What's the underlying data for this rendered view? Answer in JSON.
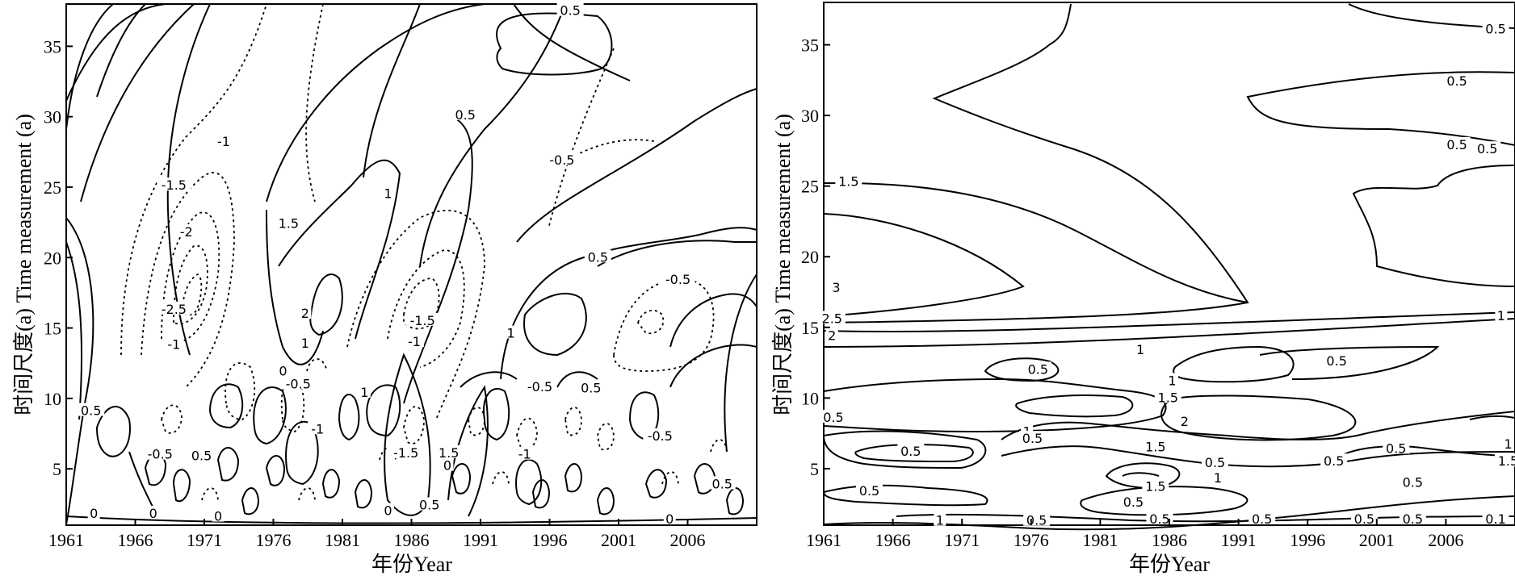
{
  "chart_data": [
    {
      "type": "contour",
      "panel": "left",
      "xlabel": "年份Year",
      "ylabel": "时间尺度(a) Time measurement (a)",
      "xlim": [
        1961,
        2011
      ],
      "ylim": [
        1,
        38
      ],
      "x_ticks": [
        "1961",
        "1966",
        "1971",
        "1976",
        "1981",
        "1986",
        "1991",
        "1996",
        "2001",
        "2006"
      ],
      "y_ticks": [
        "5",
        "10",
        "15",
        "20",
        "25",
        "30",
        "35"
      ],
      "grid": false,
      "legend": "none",
      "contour_labels": [
        {
          "x": 1997.5,
          "y": 37.5,
          "text": "0.5"
        },
        {
          "x": 1972.4,
          "y": 28.2,
          "text": "-1"
        },
        {
          "x": 1968.8,
          "y": 25.1,
          "text": "-1.5"
        },
        {
          "x": 1969.7,
          "y": 21.8,
          "text": "-2"
        },
        {
          "x": 1968.8,
          "y": 16.3,
          "text": "-2.5"
        },
        {
          "x": 1968.8,
          "y": 13.8,
          "text": "-1"
        },
        {
          "x": 1977.1,
          "y": 22.4,
          "text": "1.5"
        },
        {
          "x": 1978.3,
          "y": 16.0,
          "text": "2"
        },
        {
          "x": 1978.3,
          "y": 13.9,
          "text": "1"
        },
        {
          "x": 1984.3,
          "y": 24.5,
          "text": "1"
        },
        {
          "x": 1989.9,
          "y": 30.1,
          "text": "0.5"
        },
        {
          "x": 1996.9,
          "y": 26.9,
          "text": "-0.5"
        },
        {
          "x": 1999.5,
          "y": 20.0,
          "text": "0.5"
        },
        {
          "x": 2005.3,
          "y": 18.4,
          "text": "-0.5"
        },
        {
          "x": 1986.8,
          "y": 15.5,
          "text": "-1.5"
        },
        {
          "x": 1986.2,
          "y": 14.0,
          "text": "-1"
        },
        {
          "x": 1993.2,
          "y": 14.6,
          "text": "1"
        },
        {
          "x": 1976.7,
          "y": 11.9,
          "text": "0"
        },
        {
          "x": 1977.8,
          "y": 11.0,
          "text": "-0.5"
        },
        {
          "x": 1982.6,
          "y": 10.4,
          "text": "1"
        },
        {
          "x": 1979.2,
          "y": 7.8,
          "text": "-1"
        },
        {
          "x": 1985.6,
          "y": 6.1,
          "text": "-1.5"
        },
        {
          "x": 1988.7,
          "y": 6.1,
          "text": "1.5"
        },
        {
          "x": 1995.3,
          "y": 10.8,
          "text": "-0.5"
        },
        {
          "x": 1999.0,
          "y": 10.7,
          "text": "0.5"
        },
        {
          "x": 2004.0,
          "y": 7.3,
          "text": "-0.5"
        },
        {
          "x": 1994.2,
          "y": 6.0,
          "text": "-1"
        },
        {
          "x": 1962.8,
          "y": 9.1,
          "text": "0.5"
        },
        {
          "x": 1967.8,
          "y": 6.0,
          "text": "-0.5"
        },
        {
          "x": 1970.8,
          "y": 5.9,
          "text": "0.5"
        },
        {
          "x": 1987.3,
          "y": 2.4,
          "text": "0.5"
        },
        {
          "x": 1984.3,
          "y": 2.0,
          "text": "0"
        },
        {
          "x": 1988.6,
          "y": 5.2,
          "text": "0"
        },
        {
          "x": 1972.0,
          "y": 1.6,
          "text": "0"
        },
        {
          "x": 1967.3,
          "y": 1.8,
          "text": "0"
        },
        {
          "x": 1963.0,
          "y": 1.8,
          "text": "0"
        },
        {
          "x": 2008.5,
          "y": 3.9,
          "text": "0.5"
        },
        {
          "x": 2004.7,
          "y": 1.4,
          "text": "0"
        }
      ]
    },
    {
      "type": "contour",
      "panel": "right",
      "xlabel": "年份Year",
      "ylabel": "时间尺度(a) Time measurement (a)",
      "xlim": [
        1961,
        2011
      ],
      "ylim": [
        1,
        38
      ],
      "x_ticks": [
        "1961",
        "1966",
        "1971",
        "1976",
        "1981",
        "1986",
        "1991",
        "1996",
        "2001",
        "2006"
      ],
      "y_ticks": [
        "5",
        "10",
        "15",
        "20",
        "25",
        "30",
        "35"
      ],
      "grid": false,
      "legend": "none",
      "contour_labels": [
        {
          "x": 2009.6,
          "y": 36.1,
          "text": "0.5"
        },
        {
          "x": 2006.8,
          "y": 32.4,
          "text": "0.5"
        },
        {
          "x": 2006.8,
          "y": 27.9,
          "text": "0.5"
        },
        {
          "x": 2009.0,
          "y": 27.6,
          "text": "0.5"
        },
        {
          "x": 1962.8,
          "y": 25.3,
          "text": "1.5"
        },
        {
          "x": 1961.9,
          "y": 17.8,
          "text": "3"
        },
        {
          "x": 1961.6,
          "y": 15.6,
          "text": "2.5"
        },
        {
          "x": 1961.6,
          "y": 14.4,
          "text": "2"
        },
        {
          "x": 1983.9,
          "y": 13.4,
          "text": "1"
        },
        {
          "x": 2010.0,
          "y": 15.8,
          "text": "1"
        },
        {
          "x": 1976.5,
          "y": 12.0,
          "text": "0.5"
        },
        {
          "x": 1998.1,
          "y": 12.6,
          "text": "0.5"
        },
        {
          "x": 1986.2,
          "y": 11.2,
          "text": "1"
        },
        {
          "x": 1985.9,
          "y": 10.0,
          "text": "1.5"
        },
        {
          "x": 1961.7,
          "y": 8.6,
          "text": "0.5"
        },
        {
          "x": 1975.7,
          "y": 7.6,
          "text": "1"
        },
        {
          "x": 1976.1,
          "y": 7.1,
          "text": "0.5"
        },
        {
          "x": 1987.1,
          "y": 8.3,
          "text": "2"
        },
        {
          "x": 1985.0,
          "y": 6.5,
          "text": "1.5"
        },
        {
          "x": 1967.3,
          "y": 6.2,
          "text": "0.5"
        },
        {
          "x": 1989.3,
          "y": 5.4,
          "text": "0.5"
        },
        {
          "x": 1989.5,
          "y": 4.3,
          "text": "1"
        },
        {
          "x": 1985.0,
          "y": 3.7,
          "text": "1.5"
        },
        {
          "x": 1983.4,
          "y": 2.6,
          "text": "0.5"
        },
        {
          "x": 1964.3,
          "y": 3.4,
          "text": "0.5"
        },
        {
          "x": 1997.9,
          "y": 5.5,
          "text": "0.5"
        },
        {
          "x": 2002.4,
          "y": 6.4,
          "text": "0.5"
        },
        {
          "x": 2003.6,
          "y": 4.0,
          "text": "0.5"
        },
        {
          "x": 2010.5,
          "y": 5.5,
          "text": "1.5"
        },
        {
          "x": 2010.5,
          "y": 6.7,
          "text": "1"
        },
        {
          "x": 1969.4,
          "y": 1.3,
          "text": "1"
        },
        {
          "x": 1976.4,
          "y": 1.3,
          "text": "0.5"
        },
        {
          "x": 1985.3,
          "y": 1.4,
          "text": "0.5"
        },
        {
          "x": 1992.7,
          "y": 1.4,
          "text": "0.5"
        },
        {
          "x": 2000.1,
          "y": 1.4,
          "text": "0.5"
        },
        {
          "x": 2003.6,
          "y": 1.4,
          "text": "0.5"
        },
        {
          "x": 2009.6,
          "y": 1.4,
          "text": "0.1"
        }
      ]
    }
  ]
}
